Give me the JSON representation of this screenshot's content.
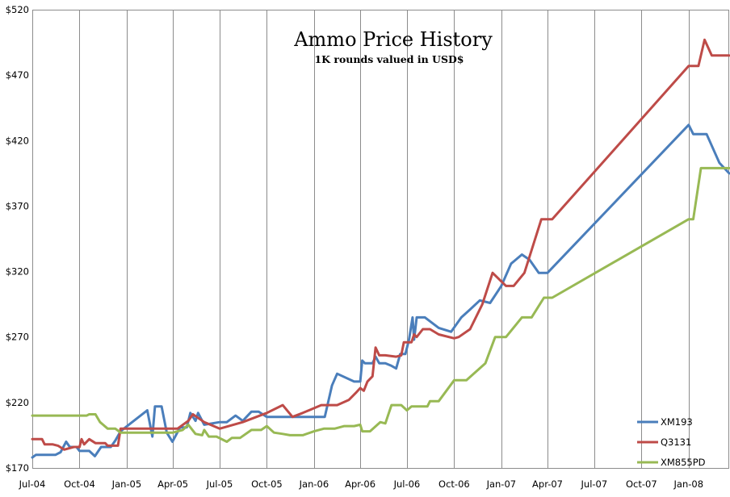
{
  "chart_data": {
    "type": "line",
    "title": "Ammo Price History",
    "subtitle": "1K rounds  valued in USD$",
    "xlabel": "",
    "ylabel": "",
    "x_range": [
      "2004-07-01",
      "2008-03-20"
    ],
    "ylim": [
      170,
      520
    ],
    "y_ticks": [
      170,
      220,
      270,
      320,
      370,
      420,
      470,
      520
    ],
    "y_tick_labels": [
      "$170",
      "$220",
      "$270",
      "$320",
      "$370",
      "$420",
      "$470",
      "$520"
    ],
    "x_ticks": [
      "2004-07-01",
      "2004-10-01",
      "2005-01-01",
      "2005-04-01",
      "2005-07-01",
      "2005-10-01",
      "2006-01-01",
      "2006-04-01",
      "2006-07-01",
      "2006-10-01",
      "2007-01-01",
      "2007-04-01",
      "2007-07-01",
      "2007-10-01",
      "2008-01-01"
    ],
    "x_tick_labels": [
      "Jul-04",
      "Oct-04",
      "Jan-05",
      "Apr-05",
      "Jul-05",
      "Oct-05",
      "Jan-06",
      "Apr-06",
      "Jul-06",
      "Oct-06",
      "Jan-07",
      "Apr-07",
      "Jul-07",
      "Oct-07",
      "Jan-08"
    ],
    "grid": {
      "vertical": true,
      "horizontal": false
    },
    "legend_position": "bottom-right",
    "series": [
      {
        "name": "XM193",
        "color": "#4a7ebb",
        "points": [
          [
            "2004-07-01",
            178
          ],
          [
            "2004-07-08",
            180
          ],
          [
            "2004-08-15",
            180
          ],
          [
            "2004-08-25",
            182
          ],
          [
            "2004-09-05",
            190
          ],
          [
            "2004-09-12",
            186
          ],
          [
            "2004-09-25",
            186
          ],
          [
            "2004-10-01",
            183
          ],
          [
            "2004-10-20",
            183
          ],
          [
            "2004-10-31",
            179
          ],
          [
            "2004-11-12",
            186
          ],
          [
            "2004-12-01",
            186
          ],
          [
            "2004-12-10",
            191
          ],
          [
            "2004-12-20",
            198
          ],
          [
            "2005-01-05",
            203
          ],
          [
            "2005-02-10",
            214
          ],
          [
            "2005-02-20",
            194
          ],
          [
            "2005-02-25",
            217
          ],
          [
            "2005-03-10",
            217
          ],
          [
            "2005-03-20",
            197
          ],
          [
            "2005-03-31",
            190
          ],
          [
            "2005-04-15",
            201
          ],
          [
            "2005-04-28",
            201
          ],
          [
            "2005-05-05",
            212
          ],
          [
            "2005-05-15",
            206
          ],
          [
            "2005-05-20",
            212
          ],
          [
            "2005-06-01",
            203
          ],
          [
            "2005-07-01",
            205
          ],
          [
            "2005-07-15",
            205
          ],
          [
            "2005-08-01",
            210
          ],
          [
            "2005-08-15",
            206
          ],
          [
            "2005-09-01",
            213
          ],
          [
            "2005-09-15",
            213
          ],
          [
            "2005-10-01",
            209
          ],
          [
            "2006-01-22",
            209
          ],
          [
            "2006-02-05",
            233
          ],
          [
            "2006-02-15",
            242
          ],
          [
            "2006-03-20",
            236
          ],
          [
            "2006-04-01",
            236
          ],
          [
            "2006-04-05",
            252
          ],
          [
            "2006-04-10",
            250
          ],
          [
            "2006-04-25",
            250
          ],
          [
            "2006-05-01",
            255
          ],
          [
            "2006-05-08",
            250
          ],
          [
            "2006-05-20",
            250
          ],
          [
            "2006-06-01",
            248
          ],
          [
            "2006-06-10",
            246
          ],
          [
            "2006-06-18",
            257
          ],
          [
            "2006-06-28",
            257
          ],
          [
            "2006-07-05",
            268
          ],
          [
            "2006-07-12",
            285
          ],
          [
            "2006-07-15",
            268
          ],
          [
            "2006-07-20",
            285
          ],
          [
            "2006-08-05",
            285
          ],
          [
            "2006-09-01",
            277
          ],
          [
            "2006-09-25",
            274
          ],
          [
            "2006-10-15",
            285
          ],
          [
            "2006-11-01",
            291
          ],
          [
            "2006-11-20",
            298
          ],
          [
            "2006-12-10",
            296
          ],
          [
            "2007-01-01",
            309
          ],
          [
            "2007-01-20",
            326
          ],
          [
            "2007-02-10",
            333
          ],
          [
            "2007-02-25",
            329
          ],
          [
            "2007-03-15",
            319
          ],
          [
            "2007-04-01",
            319
          ],
          [
            "2008-01-01",
            432
          ],
          [
            "2008-01-10",
            425
          ],
          [
            "2008-02-05",
            425
          ],
          [
            "2008-03-01",
            403
          ],
          [
            "2008-03-20",
            395
          ]
        ]
      },
      {
        "name": "Q3131",
        "color": "#be4b48",
        "points": [
          [
            "2004-07-01",
            192
          ],
          [
            "2004-07-20",
            192
          ],
          [
            "2004-07-25",
            188
          ],
          [
            "2004-08-10",
            188
          ],
          [
            "2004-08-20",
            187
          ],
          [
            "2004-09-01",
            184
          ],
          [
            "2004-09-20",
            186
          ],
          [
            "2004-10-01",
            186
          ],
          [
            "2004-10-05",
            192
          ],
          [
            "2004-10-10",
            188
          ],
          [
            "2004-10-20",
            192
          ],
          [
            "2004-11-01",
            189
          ],
          [
            "2004-11-20",
            189
          ],
          [
            "2004-11-25",
            187
          ],
          [
            "2004-12-15",
            187
          ],
          [
            "2004-12-20",
            200
          ],
          [
            "2005-01-05",
            200
          ],
          [
            "2005-03-15",
            200
          ],
          [
            "2005-04-10",
            200
          ],
          [
            "2005-05-01",
            206
          ],
          [
            "2005-05-10",
            211
          ],
          [
            "2005-06-01",
            205
          ],
          [
            "2005-07-01",
            200
          ],
          [
            "2005-08-15",
            205
          ],
          [
            "2005-10-01",
            212
          ],
          [
            "2005-11-01",
            218
          ],
          [
            "2005-11-20",
            209
          ],
          [
            "2005-12-10",
            212
          ],
          [
            "2006-01-15",
            218
          ],
          [
            "2006-02-15",
            218
          ],
          [
            "2006-03-10",
            222
          ],
          [
            "2006-03-25",
            228
          ],
          [
            "2006-04-01",
            231
          ],
          [
            "2006-04-08",
            229
          ],
          [
            "2006-04-15",
            236
          ],
          [
            "2006-04-25",
            240
          ],
          [
            "2006-05-01",
            262
          ],
          [
            "2006-05-08",
            256
          ],
          [
            "2006-05-20",
            256
          ],
          [
            "2006-06-10",
            255
          ],
          [
            "2006-06-20",
            256
          ],
          [
            "2006-06-25",
            266
          ],
          [
            "2006-07-10",
            266
          ],
          [
            "2006-07-15",
            272
          ],
          [
            "2006-07-20",
            270
          ],
          [
            "2006-08-01",
            276
          ],
          [
            "2006-08-15",
            276
          ],
          [
            "2006-09-01",
            272
          ],
          [
            "2006-10-01",
            269
          ],
          [
            "2006-10-10",
            270
          ],
          [
            "2006-11-01",
            276
          ],
          [
            "2006-11-25",
            295
          ],
          [
            "2006-12-15",
            319
          ],
          [
            "2007-01-10",
            309
          ],
          [
            "2007-01-25",
            309
          ],
          [
            "2007-02-15",
            319
          ],
          [
            "2007-03-20",
            360
          ],
          [
            "2007-04-10",
            360
          ],
          [
            "2008-01-01",
            477
          ],
          [
            "2008-01-20",
            477
          ],
          [
            "2008-02-01",
            497
          ],
          [
            "2008-02-15",
            485
          ],
          [
            "2008-03-20",
            485
          ]
        ]
      },
      {
        "name": "XM855PD",
        "color": "#98b954",
        "points": [
          [
            "2004-07-01",
            210
          ],
          [
            "2004-10-15",
            210
          ],
          [
            "2004-10-20",
            211
          ],
          [
            "2004-11-01",
            211
          ],
          [
            "2004-11-10",
            205
          ],
          [
            "2004-11-25",
            200
          ],
          [
            "2004-12-10",
            200
          ],
          [
            "2004-12-20",
            197
          ],
          [
            "2005-01-01",
            197
          ],
          [
            "2005-01-15",
            197
          ],
          [
            "2005-03-01",
            197
          ],
          [
            "2005-04-01",
            197
          ],
          [
            "2005-04-20",
            199
          ],
          [
            "2005-05-01",
            203
          ],
          [
            "2005-05-15",
            196
          ],
          [
            "2005-05-28",
            195
          ],
          [
            "2005-06-01",
            199
          ],
          [
            "2005-06-10",
            194
          ],
          [
            "2005-06-25",
            194
          ],
          [
            "2005-07-15",
            190
          ],
          [
            "2005-07-25",
            193
          ],
          [
            "2005-08-10",
            193
          ],
          [
            "2005-09-01",
            199
          ],
          [
            "2005-09-20",
            199
          ],
          [
            "2005-10-01",
            202
          ],
          [
            "2005-10-15",
            197
          ],
          [
            "2005-11-01",
            196
          ],
          [
            "2005-11-15",
            195
          ],
          [
            "2005-12-10",
            195
          ],
          [
            "2006-01-01",
            198
          ],
          [
            "2006-01-20",
            200
          ],
          [
            "2006-02-10",
            200
          ],
          [
            "2006-03-01",
            202
          ],
          [
            "2006-03-20",
            202
          ],
          [
            "2006-04-01",
            203
          ],
          [
            "2006-04-05",
            198
          ],
          [
            "2006-04-20",
            198
          ],
          [
            "2006-05-10",
            205
          ],
          [
            "2006-05-20",
            204
          ],
          [
            "2006-06-01",
            218
          ],
          [
            "2006-06-20",
            218
          ],
          [
            "2006-07-01",
            214
          ],
          [
            "2006-07-10",
            217
          ],
          [
            "2006-08-10",
            217
          ],
          [
            "2006-08-15",
            221
          ],
          [
            "2006-09-01",
            221
          ],
          [
            "2006-10-01",
            237
          ],
          [
            "2006-10-25",
            237
          ],
          [
            "2006-12-01",
            250
          ],
          [
            "2006-12-20",
            270
          ],
          [
            "2007-01-10",
            270
          ],
          [
            "2007-02-10",
            285
          ],
          [
            "2007-03-01",
            285
          ],
          [
            "2007-03-25",
            300
          ],
          [
            "2007-04-10",
            300
          ],
          [
            "2008-01-01",
            360
          ],
          [
            "2008-01-10",
            360
          ],
          [
            "2008-01-25",
            399
          ],
          [
            "2008-03-20",
            399
          ]
        ]
      }
    ]
  }
}
